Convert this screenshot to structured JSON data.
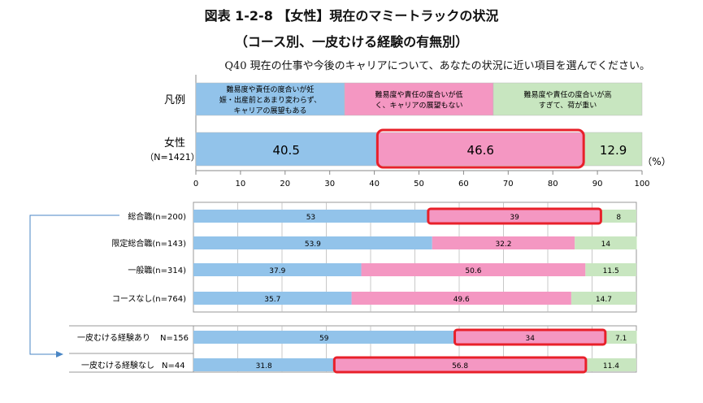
{
  "title": "図表 1-2-8 【女性】現在のマミートラックの状況",
  "subtitle": "（コース別、一皮むける経験の有無別）",
  "question": "Q40 現在の仕事や今後のキャリアについて、あなたの状況に近い項目を選んでください。",
  "colors": {
    "blue": "#92c3ea",
    "pink": "#f497c2",
    "green": "#c8e6c0",
    "highlight": "#e8202a",
    "grid": "#bbbbbb",
    "arrow": "#4a86c5"
  },
  "chart_data": [
    {
      "type": "bar",
      "stacked": true,
      "orientation": "horizontal",
      "legend_label": "凡例",
      "legend": [
        [
          "難易度や責任の度合いが妊",
          "娠・出産前とあまり変わらず、",
          "キャリアの展望もある"
        ],
        [
          "難易度や責任の度合いが低",
          "く、キャリアの展望もない"
        ],
        [
          "難易度や責任の度合いが高",
          "すぎて、荷が重い"
        ]
      ],
      "categories": [
        [
          "女性",
          "（N=1421）"
        ]
      ],
      "series": [
        {
          "values": [
            40.5
          ]
        },
        {
          "values": [
            46.6
          ]
        },
        {
          "values": [
            12.9
          ]
        }
      ],
      "highlighted": [
        [
          0,
          1
        ]
      ],
      "xlim": [
        0,
        100
      ],
      "xticks": [
        "0",
        "10",
        "20",
        "30",
        "40",
        "50",
        "60",
        "70",
        "80",
        "90",
        "100"
      ],
      "unit": "（%）"
    },
    {
      "type": "bar",
      "stacked": true,
      "orientation": "horizontal",
      "categories": [
        "総合職(n=200)",
        "限定総合職(n=143)",
        "一般職(n=314)",
        "コースなし(n=764)"
      ],
      "series": [
        {
          "values": [
            53.0,
            53.9,
            37.9,
            35.7
          ]
        },
        {
          "values": [
            39.0,
            32.2,
            50.6,
            49.6
          ]
        },
        {
          "values": [
            8.0,
            14.0,
            11.5,
            14.7
          ]
        }
      ],
      "highlighted": [
        [
          0,
          1
        ]
      ],
      "xlim": [
        0,
        100
      ],
      "grid": true
    },
    {
      "type": "bar",
      "stacked": true,
      "orientation": "horizontal",
      "categories": [
        [
          "一皮むける経験あり",
          "N=156"
        ],
        [
          "一皮むける経験なし",
          "N=44"
        ]
      ],
      "series": [
        {
          "values": [
            59.0,
            31.8
          ]
        },
        {
          "values": [
            34.0,
            56.8
          ]
        },
        {
          "values": [
            7.1,
            11.4
          ]
        }
      ],
      "highlighted": [
        [
          0,
          1
        ],
        [
          1,
          1
        ]
      ],
      "xlim": [
        0,
        100
      ],
      "grid": true
    }
  ]
}
